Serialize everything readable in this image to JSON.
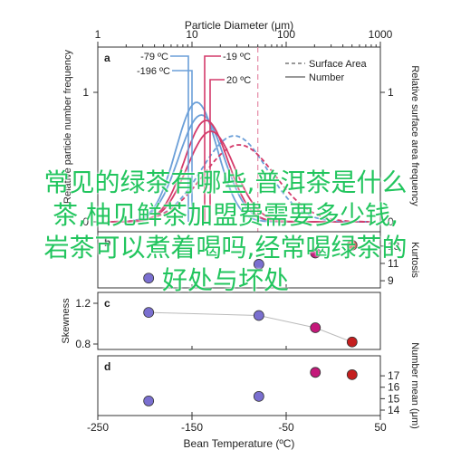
{
  "colors": {
    "cold": "#6b9fd8",
    "warm": "#d43a6a",
    "marker_cold": "#7a6fd0",
    "marker_mid": "#c4187a",
    "marker_warm": "#c41e1e",
    "overlay_text": "#22c55e",
    "fit_line": "#bbbbbb"
  },
  "overlay": {
    "line1": "常见的绿茶有哪些,普洱茶是什么",
    "line2": "茶,柚见鲜茶加盟费需要多少钱,",
    "line3": "岩茶可以煮着喝吗,经常喝绿茶的",
    "line4": "好处与坏处"
  },
  "chart_data": [
    {
      "panel": "a",
      "type": "line",
      "top_axis_label": "Particle Diameter (μm)",
      "top_ticks": [
        "1",
        "10",
        "100",
        "1000"
      ],
      "top_axis_scale": "log",
      "y_left_label": "Relative particle number frequency",
      "y_right_label": "Relative surface area frequency",
      "y_left_ticks": [
        "0",
        "1"
      ],
      "y_right_ticks": [
        "0",
        "1"
      ],
      "legend": {
        "dashed": "Surface Area",
        "solid": "Number"
      },
      "temperature_labels": [
        "-79 ºC",
        "-196 ºC",
        "-19 ºC",
        "20 ºC"
      ],
      "vertical_marker_x": 50
    },
    {
      "panel": "b",
      "type": "scatter",
      "ylabel": "",
      "right_label": "Kurtosis",
      "right_ticks": [
        "9",
        "11",
        "13"
      ],
      "x": [
        -196,
        -79,
        -19,
        20
      ],
      "y": [
        9.3,
        10.9,
        12.2,
        13.1
      ]
    },
    {
      "panel": "c",
      "type": "scatter",
      "ylabel": "Skewness",
      "y_ticks": [
        "0.8",
        "1.2"
      ],
      "ylim": [
        0.8,
        1.2
      ],
      "x": [
        -196,
        -79,
        -19,
        20
      ],
      "y": [
        1.11,
        1.08,
        0.96,
        0.82
      ]
    },
    {
      "panel": "d",
      "type": "scatter",
      "right_label": "Number mean (μm)",
      "right_ticks": [
        "14",
        "15",
        "16",
        "17"
      ],
      "ylim": [
        14,
        17.8
      ],
      "x": [
        -196,
        -79,
        -19,
        20
      ],
      "y": [
        14.8,
        15.2,
        17.3,
        17.1
      ],
      "xlabel": "Bean Temperature (ºC)",
      "x_ticks": [
        "-250",
        "-150",
        "-50",
        "50"
      ],
      "xlim": [
        -250,
        50
      ]
    }
  ]
}
